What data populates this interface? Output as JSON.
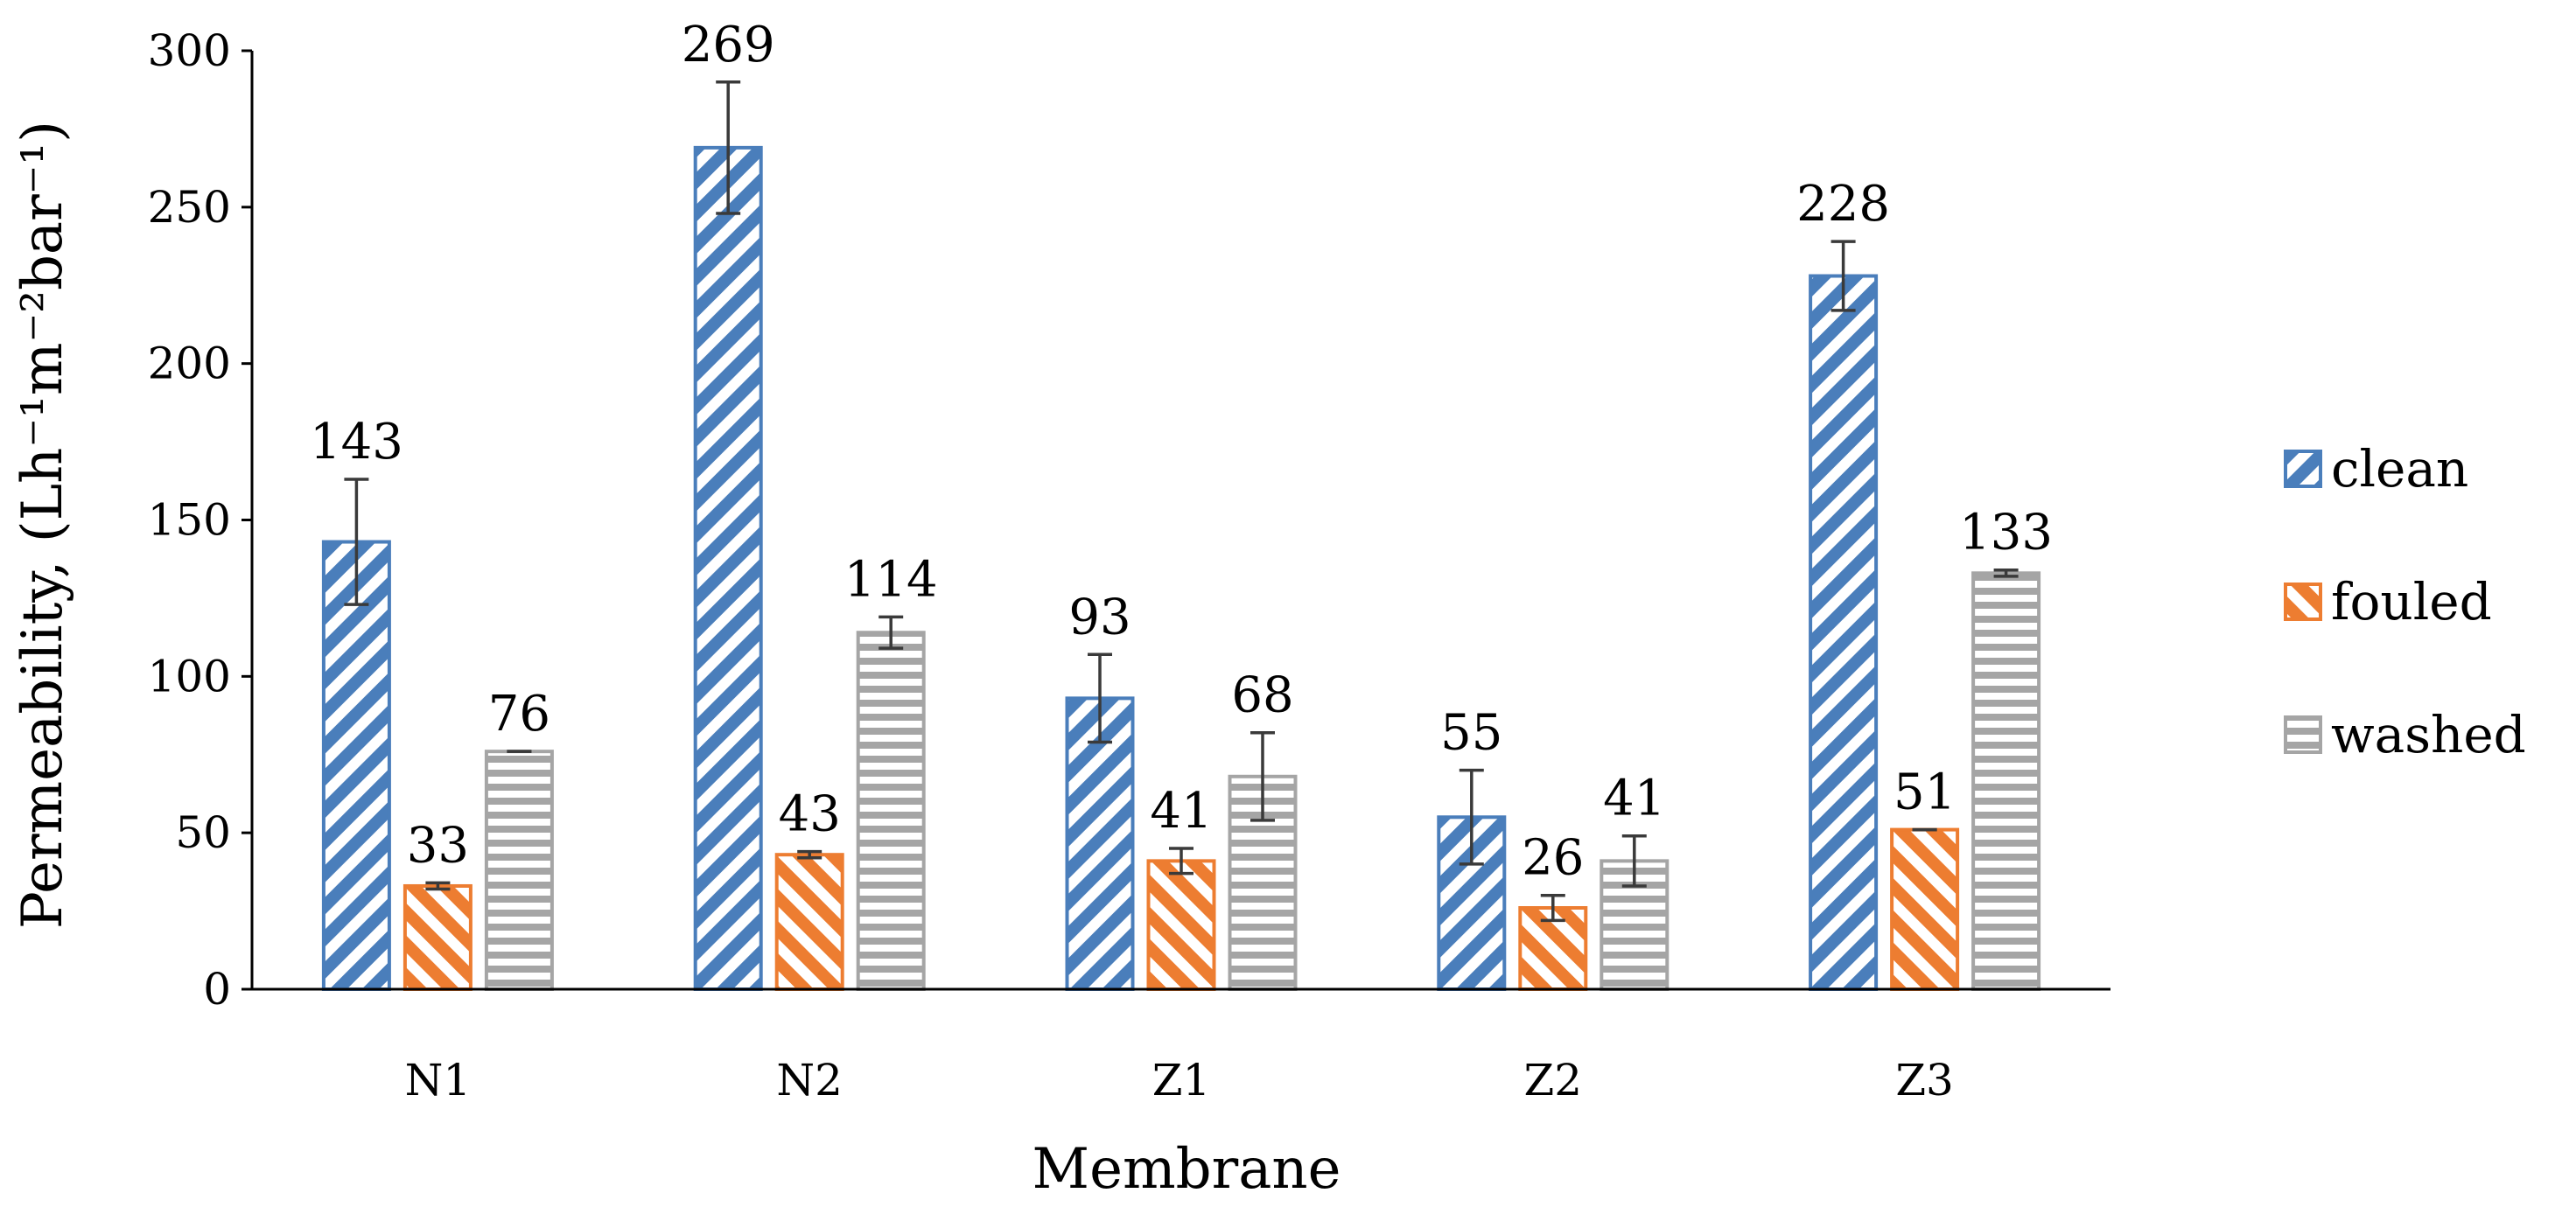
{
  "chart_data": {
    "type": "bar",
    "title": "",
    "xlabel": "Membrane",
    "ylabel": "Permeability, (Lh⁻¹m⁻²bar⁻¹)",
    "categories": [
      "N1",
      "N2",
      "Z1",
      "Z2",
      "Z3"
    ],
    "ylim": [
      0,
      300
    ],
    "yticks": [
      0,
      50,
      100,
      150,
      200,
      250,
      300
    ],
    "grid": false,
    "legend_position": "right",
    "series": [
      {
        "name": "clean",
        "color": "#4a7ebb",
        "pattern": "wide upward diagonal",
        "values": [
          143,
          269,
          93,
          55,
          228
        ],
        "errors": [
          20,
          21,
          14,
          15,
          11
        ],
        "labels": [
          "143",
          "269",
          "93",
          "55",
          "228"
        ]
      },
      {
        "name": "fouled",
        "color": "#ed7d31",
        "pattern": "wide downward diagonal",
        "values": [
          33,
          43,
          41,
          26,
          51
        ],
        "errors": [
          1,
          1,
          4,
          4,
          0
        ],
        "labels": [
          "33",
          "43",
          "41",
          "26",
          "51"
        ]
      },
      {
        "name": "washed",
        "color": "#a5a5a5",
        "pattern": "horizontal stripes",
        "values": [
          76,
          114,
          68,
          41,
          133
        ],
        "errors": [
          0,
          5,
          14,
          8,
          1
        ],
        "labels": [
          "76",
          "114",
          "68",
          "41",
          "133"
        ]
      }
    ]
  }
}
